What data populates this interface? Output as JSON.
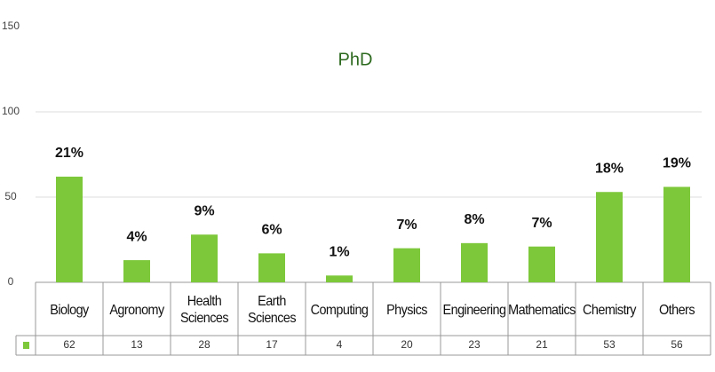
{
  "chart_data": {
    "type": "bar",
    "title": "PhD",
    "categories": [
      "Biology",
      "Agronomy",
      "Health Sciences",
      "Earth Sciences",
      "Computing",
      "Physics",
      "Engineering",
      "Mathematics",
      "Chemistry",
      "Others"
    ],
    "values": [
      62,
      13,
      28,
      17,
      4,
      20,
      23,
      21,
      53,
      56
    ],
    "annotations": [
      "21%",
      "4%",
      "9%",
      "6%",
      "1%",
      "7%",
      "8%",
      "7%",
      "18%",
      "19%"
    ],
    "color": "#7dc83a",
    "ylim": [
      0,
      150
    ],
    "yticks": [
      0,
      50,
      100,
      150
    ],
    "grid": true
  }
}
